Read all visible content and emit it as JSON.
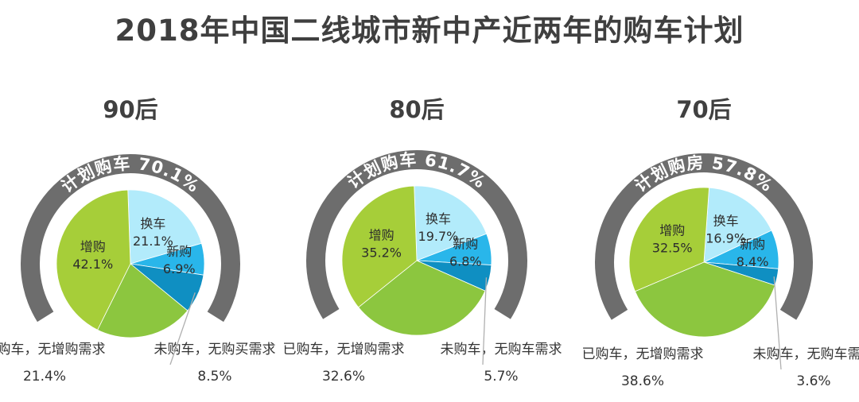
{
  "title": "2018年中国二线城市新中产近两年的购车计划",
  "colors": {
    "arc": "#6d6d6d",
    "slices": [
      "#a6ce39",
      "#b2ebfb",
      "#29b6ea",
      "#0f8fc2",
      "#8cc63f"
    ],
    "leader": "#b0b0b0"
  },
  "chart_data": [
    {
      "type": "pie",
      "title": "90后",
      "arc_label": "计划购车 70.1%",
      "plan_share": 70.1,
      "slices": [
        {
          "label": "增购",
          "value": 42.1,
          "value_text": "42.1%"
        },
        {
          "label": "换车",
          "value": 21.1,
          "value_text": "21.1%"
        },
        {
          "label": "新购",
          "value": 6.9,
          "value_text": "6.9%"
        },
        {
          "label": "未购车，无购买需求",
          "value": 8.5,
          "value_text": "8.5%"
        },
        {
          "label": "已购车，无增购需求",
          "value": 21.4,
          "value_text": "21.4%"
        }
      ]
    },
    {
      "type": "pie",
      "title": "80后",
      "arc_label": "计划购车 61.7%",
      "plan_share": 61.7,
      "slices": [
        {
          "label": "增购",
          "value": 35.2,
          "value_text": "35.2%"
        },
        {
          "label": "换车",
          "value": 19.7,
          "value_text": "19.7%"
        },
        {
          "label": "新购",
          "value": 6.8,
          "value_text": "6.8%"
        },
        {
          "label": "未购车，无购车需求",
          "value": 5.7,
          "value_text": "5.7%"
        },
        {
          "label": "已购车，无增购需求",
          "value": 32.6,
          "value_text": "32.6%"
        }
      ]
    },
    {
      "type": "pie",
      "title": "70后",
      "arc_label": "计划购房 57.8%",
      "plan_share": 57.8,
      "slices": [
        {
          "label": "增购",
          "value": 32.5,
          "value_text": "32.5%"
        },
        {
          "label": "换车",
          "value": 16.9,
          "value_text": "16.9%"
        },
        {
          "label": "新购",
          "value": 8.4,
          "value_text": "8.4%"
        },
        {
          "label": "未购车，无购车需求",
          "value": 3.6,
          "value_text": "3.6%"
        },
        {
          "label": "已购车，无增购需求",
          "value": 38.6,
          "value_text": "38.6%"
        }
      ]
    }
  ]
}
